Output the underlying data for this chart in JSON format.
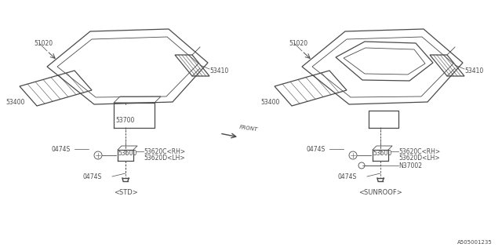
{
  "bg_color": "#ffffff",
  "line_color": "#4a4a4a",
  "text_color": "#4a4a4a",
  "fig_width": 6.4,
  "fig_height": 3.2,
  "dpi": 100,
  "part_number_ref": "A505001235",
  "left_title": "<STD>",
  "right_title": "<SUNROOF>",
  "font_size": 5.5
}
